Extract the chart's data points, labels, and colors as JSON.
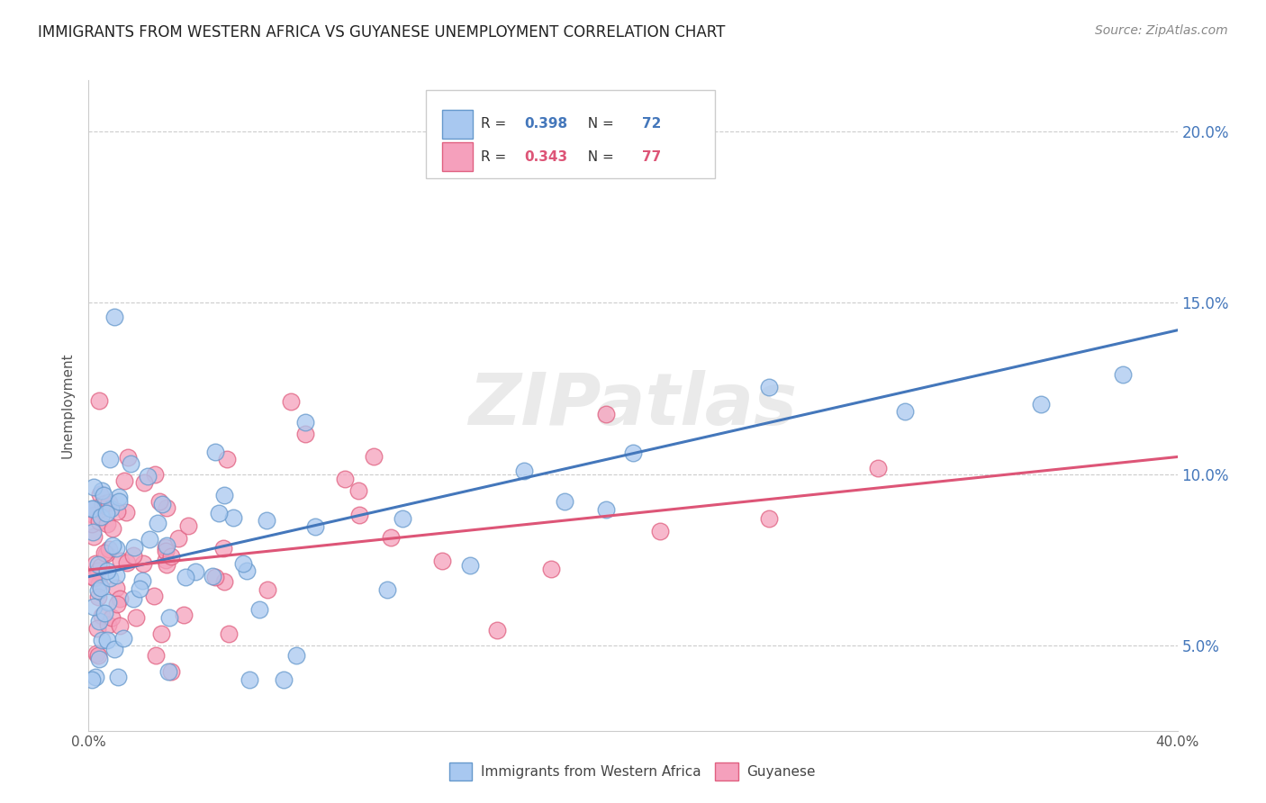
{
  "title": "IMMIGRANTS FROM WESTERN AFRICA VS GUYANESE UNEMPLOYMENT CORRELATION CHART",
  "source": "Source: ZipAtlas.com",
  "ylabel": "Unemployment",
  "ytick_values": [
    5.0,
    10.0,
    15.0,
    20.0
  ],
  "xmin": 0.0,
  "xmax": 40.0,
  "ymin": 2.5,
  "ymax": 21.5,
  "legend_label1": "Immigrants from Western Africa",
  "legend_label2": "Guyanese",
  "R1": "0.398",
  "N1": "72",
  "R2": "0.343",
  "N2": "77",
  "color_blue": "#A8C8F0",
  "color_pink": "#F5A0BC",
  "color_blue_edge": "#6699CC",
  "color_pink_edge": "#E06080",
  "color_blue_line": "#4477BB",
  "color_pink_line": "#DD5577",
  "color_blue_text": "#4477BB",
  "color_pink_text": "#DD5577",
  "background_color": "#FFFFFF",
  "watermark_text": "ZIPatlas",
  "title_fontsize": 12,
  "source_fontsize": 10,
  "legend_fontsize": 11,
  "axis_label_fontsize": 11,
  "blue_line_x0": 0.0,
  "blue_line_y0": 7.0,
  "blue_line_x1": 40.0,
  "blue_line_y1": 14.2,
  "pink_line_x0": 0.0,
  "pink_line_y0": 7.2,
  "pink_line_x1": 40.0,
  "pink_line_y1": 10.5
}
